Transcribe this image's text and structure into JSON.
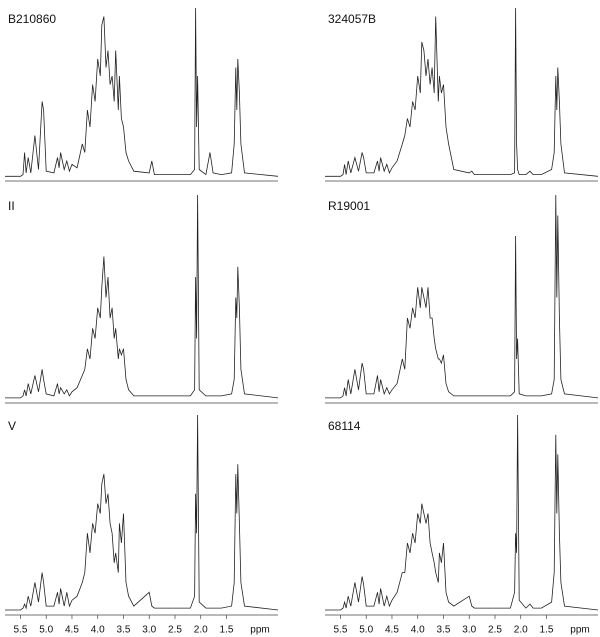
{
  "chart_data": [
    {
      "type": "line",
      "title": "B210860",
      "color": "#222",
      "xlim": [
        5.8,
        0.5
      ],
      "ylim": [
        0,
        100
      ],
      "x": [
        5.8,
        5.5,
        5.45,
        5.42,
        5.39,
        5.35,
        5.3,
        5.22,
        5.15,
        5.08,
        5.05,
        5.0,
        4.85,
        4.78,
        4.75,
        4.72,
        4.65,
        4.6,
        4.55,
        4.5,
        4.4,
        4.3,
        4.25,
        4.2,
        4.15,
        4.1,
        4.05,
        4.0,
        3.95,
        3.92,
        3.88,
        3.84,
        3.8,
        3.76,
        3.72,
        3.68,
        3.65,
        3.6,
        3.58,
        3.54,
        3.5,
        3.45,
        3.4,
        3.3,
        3.0,
        2.95,
        2.9,
        2.2,
        2.12,
        2.1,
        2.08,
        2.06,
        2.03,
        1.9,
        1.82,
        1.76,
        1.6,
        1.4,
        1.35,
        1.32,
        1.3,
        1.28,
        1.25,
        1.22,
        1.15,
        0.5
      ],
      "values": [
        1,
        1,
        2,
        15,
        3,
        12,
        3,
        25,
        5,
        45,
        40,
        4,
        3,
        12,
        6,
        15,
        5,
        10,
        4,
        8,
        6,
        20,
        15,
        40,
        30,
        55,
        45,
        70,
        60,
        90,
        95,
        65,
        75,
        55,
        60,
        45,
        75,
        40,
        60,
        35,
        30,
        15,
        10,
        4,
        3,
        10,
        2,
        2,
        5,
        100,
        30,
        60,
        5,
        2,
        15,
        3,
        2,
        3,
        20,
        65,
        40,
        70,
        50,
        20,
        3,
        1
      ]
    },
    {
      "type": "line",
      "title": "324057B",
      "color": "#222",
      "xlim": [
        5.8,
        0.5
      ],
      "ylim": [
        0,
        100
      ],
      "x": [
        5.8,
        5.5,
        5.45,
        5.42,
        5.39,
        5.35,
        5.3,
        5.22,
        5.15,
        5.08,
        5.05,
        5.0,
        4.85,
        4.78,
        4.75,
        4.72,
        4.65,
        4.6,
        4.55,
        4.5,
        4.4,
        4.3,
        4.25,
        4.2,
        4.15,
        4.1,
        4.05,
        4.0,
        3.95,
        3.92,
        3.88,
        3.84,
        3.8,
        3.76,
        3.72,
        3.68,
        3.65,
        3.6,
        3.58,
        3.54,
        3.5,
        3.45,
        3.4,
        3.3,
        3.0,
        2.95,
        2.9,
        2.2,
        2.12,
        2.1,
        2.08,
        2.06,
        2.03,
        1.9,
        1.82,
        1.76,
        1.6,
        1.4,
        1.35,
        1.32,
        1.3,
        1.28,
        1.25,
        1.22,
        1.15,
        0.5
      ],
      "values": [
        1,
        1,
        2,
        8,
        2,
        10,
        3,
        12,
        4,
        15,
        12,
        3,
        3,
        10,
        4,
        12,
        4,
        8,
        3,
        6,
        10,
        20,
        25,
        35,
        30,
        45,
        40,
        60,
        50,
        80,
        75,
        60,
        70,
        55,
        65,
        50,
        95,
        45,
        60,
        50,
        55,
        30,
        20,
        5,
        3,
        4,
        2,
        2,
        3,
        100,
        20,
        5,
        2,
        2,
        4,
        2,
        2,
        5,
        15,
        60,
        40,
        65,
        45,
        20,
        3,
        1
      ]
    },
    {
      "type": "line",
      "title": "II",
      "color": "#222",
      "xlim": [
        5.8,
        0.5
      ],
      "ylim": [
        0,
        100
      ],
      "x": [
        5.8,
        5.5,
        5.45,
        5.42,
        5.39,
        5.35,
        5.3,
        5.22,
        5.15,
        5.08,
        5.05,
        5.0,
        4.85,
        4.78,
        4.75,
        4.72,
        4.65,
        4.6,
        4.55,
        4.5,
        4.4,
        4.3,
        4.25,
        4.2,
        4.15,
        4.1,
        4.05,
        4.0,
        3.95,
        3.92,
        3.88,
        3.84,
        3.8,
        3.76,
        3.72,
        3.68,
        3.65,
        3.6,
        3.58,
        3.54,
        3.5,
        3.45,
        3.4,
        3.3,
        3.0,
        2.95,
        2.9,
        2.2,
        2.12,
        2.1,
        2.08,
        2.06,
        2.03,
        1.9,
        1.82,
        1.76,
        1.6,
        1.4,
        1.35,
        1.32,
        1.3,
        1.28,
        1.25,
        1.22,
        1.15,
        0.5
      ],
      "values": [
        1,
        1,
        2,
        5,
        2,
        8,
        3,
        12,
        4,
        15,
        10,
        3,
        2,
        8,
        3,
        6,
        3,
        5,
        2,
        4,
        6,
        12,
        15,
        25,
        20,
        35,
        30,
        45,
        40,
        55,
        70,
        50,
        60,
        40,
        45,
        30,
        35,
        20,
        25,
        22,
        25,
        10,
        5,
        2,
        2,
        2,
        2,
        2,
        5,
        60,
        30,
        100,
        5,
        2,
        2,
        2,
        2,
        3,
        10,
        50,
        40,
        65,
        45,
        15,
        3,
        1
      ]
    },
    {
      "type": "line",
      "title": "R19001",
      "color": "#222",
      "xlim": [
        5.8,
        0.5
      ],
      "ylim": [
        0,
        100
      ],
      "x": [
        5.8,
        5.5,
        5.45,
        5.42,
        5.39,
        5.35,
        5.3,
        5.22,
        5.15,
        5.08,
        5.05,
        5.0,
        4.85,
        4.78,
        4.75,
        4.72,
        4.65,
        4.6,
        4.55,
        4.5,
        4.4,
        4.3,
        4.25,
        4.2,
        4.15,
        4.1,
        4.05,
        4.0,
        3.95,
        3.92,
        3.88,
        3.84,
        3.8,
        3.76,
        3.72,
        3.68,
        3.65,
        3.6,
        3.58,
        3.54,
        3.5,
        3.45,
        3.4,
        3.3,
        3.0,
        2.95,
        2.9,
        2.2,
        2.12,
        2.1,
        2.08,
        2.06,
        2.03,
        1.9,
        1.82,
        1.76,
        1.6,
        1.4,
        1.35,
        1.32,
        1.3,
        1.28,
        1.25,
        1.22,
        1.15,
        0.5
      ],
      "values": [
        1,
        1,
        2,
        6,
        2,
        10,
        3,
        15,
        5,
        18,
        15,
        3,
        3,
        12,
        4,
        10,
        3,
        6,
        3,
        5,
        8,
        20,
        15,
        40,
        35,
        45,
        40,
        55,
        45,
        55,
        50,
        45,
        55,
        40,
        40,
        30,
        25,
        20,
        20,
        18,
        22,
        8,
        4,
        2,
        2,
        2,
        2,
        2,
        4,
        80,
        20,
        30,
        3,
        2,
        2,
        2,
        2,
        3,
        10,
        100,
        50,
        90,
        40,
        10,
        3,
        1
      ]
    },
    {
      "type": "line",
      "title": "V",
      "color": "#222",
      "xlim": [
        5.8,
        0.5
      ],
      "ylim": [
        0,
        100
      ],
      "xlabel": "ppm",
      "xticks": [
        5.5,
        {
          "value": 5,
          "label": "5.0"
        },
        4.5,
        {
          "value": 4,
          "label": "4.0"
        },
        3.5,
        {
          "value": 3,
          "label": "3.0"
        },
        2.5,
        {
          "value": 2,
          "label": "2.0"
        },
        1.5
      ],
      "x": [
        5.8,
        5.5,
        5.45,
        5.42,
        5.39,
        5.35,
        5.3,
        5.22,
        5.15,
        5.08,
        5.05,
        5.0,
        4.85,
        4.78,
        4.75,
        4.72,
        4.65,
        4.6,
        4.55,
        4.5,
        4.4,
        4.3,
        4.25,
        4.2,
        4.15,
        4.1,
        4.05,
        4.0,
        3.95,
        3.92,
        3.88,
        3.84,
        3.8,
        3.76,
        3.72,
        3.68,
        3.65,
        3.6,
        3.58,
        3.54,
        3.5,
        3.45,
        3.4,
        3.3,
        3.0,
        2.95,
        2.9,
        2.2,
        2.12,
        2.1,
        2.08,
        2.06,
        2.03,
        1.9,
        1.82,
        1.76,
        1.6,
        1.4,
        1.35,
        1.32,
        1.3,
        1.28,
        1.25,
        1.22,
        1.15,
        0.5
      ],
      "values": [
        1,
        1,
        2,
        4,
        2,
        8,
        3,
        15,
        5,
        20,
        15,
        3,
        3,
        10,
        4,
        12,
        3,
        10,
        3,
        6,
        8,
        15,
        20,
        40,
        30,
        45,
        40,
        55,
        50,
        65,
        70,
        55,
        60,
        45,
        40,
        25,
        30,
        20,
        45,
        35,
        50,
        15,
        8,
        3,
        10,
        3,
        2,
        2,
        8,
        60,
        40,
        100,
        5,
        2,
        2,
        2,
        2,
        3,
        15,
        70,
        50,
        75,
        45,
        15,
        3,
        1
      ]
    },
    {
      "type": "line",
      "title": "68114",
      "color": "#222",
      "xlim": [
        5.8,
        0.5
      ],
      "ylim": [
        0,
        100
      ],
      "xlabel": "ppm",
      "xticks": [
        5.5,
        {
          "value": 5,
          "label": "5.0"
        },
        4.5,
        {
          "value": 4,
          "label": "4.0"
        },
        3.5,
        {
          "value": 3,
          "label": "3.0"
        },
        2.5,
        {
          "value": 2,
          "label": "2.0"
        },
        1.5
      ],
      "x": [
        5.8,
        5.5,
        5.45,
        5.42,
        5.39,
        5.35,
        5.3,
        5.22,
        5.15,
        5.08,
        5.05,
        5.0,
        4.85,
        4.78,
        4.75,
        4.72,
        4.65,
        4.6,
        4.55,
        4.5,
        4.4,
        4.3,
        4.25,
        4.2,
        4.15,
        4.1,
        4.05,
        4.0,
        3.95,
        3.92,
        3.88,
        3.84,
        3.8,
        3.76,
        3.72,
        3.68,
        3.65,
        3.6,
        3.58,
        3.54,
        3.5,
        3.45,
        3.4,
        3.3,
        3.0,
        2.95,
        2.9,
        2.2,
        2.12,
        2.1,
        2.08,
        2.06,
        2.03,
        1.9,
        1.82,
        1.76,
        1.6,
        1.4,
        1.35,
        1.32,
        1.3,
        1.28,
        1.25,
        1.22,
        1.15,
        0.5
      ],
      "values": [
        1,
        1,
        2,
        5,
        2,
        8,
        3,
        15,
        5,
        18,
        14,
        3,
        3,
        10,
        4,
        12,
        3,
        8,
        3,
        6,
        10,
        20,
        20,
        35,
        30,
        40,
        35,
        50,
        45,
        55,
        50,
        45,
        50,
        35,
        30,
        25,
        20,
        15,
        30,
        25,
        35,
        10,
        5,
        3,
        8,
        3,
        2,
        2,
        10,
        40,
        30,
        100,
        6,
        2,
        4,
        2,
        2,
        5,
        20,
        90,
        50,
        80,
        40,
        15,
        3,
        1
      ]
    }
  ]
}
